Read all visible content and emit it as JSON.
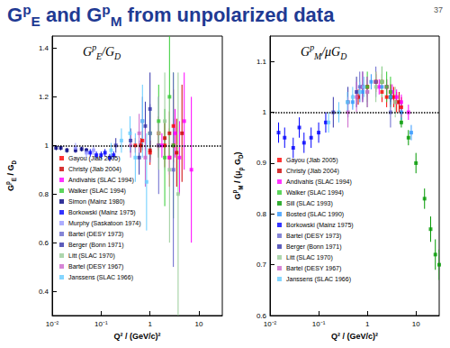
{
  "title": "GpE and GpM from unpolarized data",
  "page": 37,
  "chart_data": [
    {
      "type": "scatter",
      "annotations": [
        "GpE/GD"
      ],
      "x_label": "Q² / (GeV/c)²",
      "y_label": "GpE / GD",
      "log": "x",
      "xlim": [
        0.01,
        30
      ],
      "xticks": [
        {
          "value": 0.01,
          "label": "10⁻²"
        },
        {
          "value": 0.1,
          "label": "10⁻¹"
        },
        1,
        10
      ],
      "ylim": [
        0.3,
        1.45
      ],
      "yticks": [
        0.4,
        0.6,
        0.8,
        1,
        1.2,
        1.4
      ],
      "reference_line": 1,
      "grid": false,
      "legend": "left",
      "marker": "square",
      "series": [
        {
          "name": "Gayou (Jlab 2005)",
          "color": "#ff0000",
          "x": [
            0.5,
            0.7,
            1,
            1.5,
            2,
            2.5,
            3
          ],
          "values": [
            1.0,
            1.02,
            0.97,
            1.05,
            1.0,
            0.95,
            1.08
          ],
          "errors": [
            0.03,
            0.04,
            0.05,
            0.07,
            0.09,
            0.12,
            0.15
          ]
        },
        {
          "name": "Christy (Jlab 2004)",
          "color": "#cc0000",
          "x": [
            0.65,
            1,
            1.5,
            2,
            2.5,
            3,
            3.5,
            4.5
          ],
          "values": [
            1.0,
            0.98,
            1.0,
            1.03,
            1.05,
            1.0,
            0.97,
            1.05
          ],
          "errors": [
            0.03,
            0.04,
            0.05,
            0.07,
            0.09,
            0.11,
            0.14,
            0.2
          ]
        },
        {
          "name": "Andivahis (SLAC 1994)",
          "color": "#ff00ff",
          "x": [
            1.75,
            2.5,
            3.25,
            4,
            5,
            7
          ],
          "values": [
            1.0,
            0.95,
            1.05,
            0.95,
            1.1,
            0.9
          ],
          "errors": [
            0.05,
            0.07,
            0.1,
            0.15,
            0.2,
            0.3
          ]
        },
        {
          "name": "Walker (SLAC 1994)",
          "color": "#33cc33",
          "x": [
            1,
            1.5,
            2,
            2.5,
            3
          ],
          "values": [
            1.05,
            1.1,
            0.95,
            1.2,
            1.0
          ],
          "errors": [
            0.1,
            0.15,
            0.2,
            0.25,
            0.3
          ]
        },
        {
          "name": "Simon (Mainz 1980)",
          "color": "#000080",
          "x": [
            0.012,
            0.015,
            0.02,
            0.03,
            0.04,
            0.05
          ],
          "values": [
            0.99,
            0.99,
            0.98,
            0.98,
            0.985,
            0.98
          ],
          "errors": [
            0.01,
            0.01,
            0.01,
            0.01,
            0.01,
            0.01
          ]
        },
        {
          "name": "Borkowski (Mainz 1975)",
          "color": "#0000ff",
          "x": [
            0.06,
            0.08,
            0.1,
            0.12,
            0.15,
            0.18
          ],
          "values": [
            0.97,
            0.96,
            0.96,
            0.97,
            0.95,
            0.96
          ],
          "errors": [
            0.015,
            0.015,
            0.015,
            0.015,
            0.015,
            0.015
          ]
        },
        {
          "name": "Murphy (Saskatoon 1974)",
          "color": "#9999ff",
          "x": [
            0.03,
            0.05,
            0.07
          ],
          "values": [
            0.99,
            0.97,
            0.98
          ],
          "errors": [
            0.02,
            0.02,
            0.02
          ]
        },
        {
          "name": "Bartel (DESY 1973)",
          "color": "#6666cc",
          "x": [
            0.7,
            1,
            1.5,
            3
          ],
          "values": [
            1.1,
            1.05,
            1.0,
            0.9
          ],
          "errors": [
            0.1,
            0.12,
            0.2,
            0.4
          ]
        },
        {
          "name": "Berger (Bonn 1971)",
          "color": "#3333aa",
          "x": [
            0.2,
            0.4,
            0.6,
            0.8,
            1.0
          ],
          "values": [
            1.0,
            1.02,
            0.95,
            1.08,
            1.15
          ],
          "errors": [
            0.03,
            0.05,
            0.07,
            0.1,
            0.15
          ]
        },
        {
          "name": "Litt (SLAC 1970)",
          "color": "#99cc99",
          "x": [
            1.5,
            2,
            2.5,
            3.75
          ],
          "values": [
            1.05,
            1.1,
            0.9,
            0.8
          ],
          "errors": [
            0.15,
            0.2,
            0.3,
            0.5
          ]
        },
        {
          "name": "Bartel (DESY 1967)",
          "color": "#cc66cc",
          "x": [
            0.4,
            0.6,
            0.8
          ],
          "values": [
            1.0,
            1.05,
            0.95
          ],
          "errors": [
            0.05,
            0.08,
            0.12
          ]
        },
        {
          "name": "Janssens (SLAC 1966)",
          "color": "#66ccff",
          "x": [
            0.16,
            0.26,
            0.39,
            0.5,
            0.7,
            0.85
          ],
          "values": [
            0.98,
            1.02,
            1.05,
            0.95,
            1.1,
            0.85
          ],
          "errors": [
            0.03,
            0.05,
            0.07,
            0.1,
            0.15,
            0.2
          ]
        }
      ]
    },
    {
      "type": "scatter",
      "annotations": [
        "GpM/μGD"
      ],
      "x_label": "Q² / (GeV/c)²",
      "y_label": "GpM / (μp GD)",
      "log": "x",
      "xlim": [
        0.01,
        30
      ],
      "xticks": [
        {
          "value": 0.01,
          "label": "10⁻²"
        },
        {
          "value": 0.1,
          "label": "10⁻¹"
        },
        1,
        10
      ],
      "ylim": [
        0.6,
        1.15
      ],
      "yticks": [
        0.6,
        0.7,
        0.8,
        0.9,
        1,
        1.1
      ],
      "reference_line": 1,
      "grid": false,
      "legend": "left",
      "marker": "square",
      "series": [
        {
          "name": "Gayou (Jlab 2005)",
          "color": "#ff0000",
          "x": [
            1,
            1.5,
            2,
            2.5,
            3.5,
            4,
            5
          ],
          "values": [
            1.05,
            1.06,
            1.04,
            1.03,
            1.03,
            1.02,
            1.01
          ],
          "errors": [
            0.02,
            0.02,
            0.02,
            0.02,
            0.02,
            0.02,
            0.02
          ]
        },
        {
          "name": "Christy (Jlab 2004)",
          "color": "#cc0000",
          "x": [
            0.65,
            1,
            1.5,
            2,
            2.5,
            3,
            4.5
          ],
          "values": [
            1.03,
            1.05,
            1.06,
            1.06,
            1.05,
            1.04,
            1.02
          ],
          "errors": [
            0.015,
            0.015,
            0.015,
            0.015,
            0.015,
            0.015,
            0.02
          ]
        },
        {
          "name": "Andivahis (SLAC 1994)",
          "color": "#ff00ff",
          "x": [
            1.75,
            2.5,
            3.25,
            4,
            5,
            7
          ],
          "values": [
            1.05,
            1.05,
            1.04,
            1.03,
            1.02,
            1.0
          ],
          "errors": [
            0.015,
            0.015,
            0.015,
            0.015,
            0.015,
            0.015
          ]
        },
        {
          "name": "Walker (SLAC 1994)",
          "color": "#33cc33",
          "x": [
            1,
            2,
            2.5,
            3
          ],
          "values": [
            1.05,
            1.06,
            1.05,
            1.04
          ],
          "errors": [
            0.03,
            0.03,
            0.03,
            0.03
          ]
        },
        {
          "name": "Sill (SLAC 1993)",
          "color": "#009900",
          "x": [
            3,
            5,
            7,
            10,
            15,
            20,
            25,
            30
          ],
          "values": [
            1.03,
            0.98,
            0.95,
            0.9,
            0.83,
            0.77,
            0.72,
            0.7
          ],
          "errors": [
            0.01,
            0.01,
            0.015,
            0.02,
            0.02,
            0.025,
            0.03,
            0.03
          ]
        },
        {
          "name": "Bosted (SLAC 1990)",
          "color": "#3399ff",
          "x": [
            0.5,
            0.8,
            1.2,
            2,
            3,
            5,
            8
          ],
          "values": [
            1.02,
            1.04,
            1.06,
            1.05,
            1.03,
            1.0,
            0.96
          ],
          "errors": [
            0.015,
            0.015,
            0.015,
            0.015,
            0.015,
            0.015,
            0.015
          ]
        },
        {
          "name": "Borkowski (Mainz 1975)",
          "color": "#0000ff",
          "x": [
            0.015,
            0.02,
            0.03,
            0.04,
            0.05,
            0.07,
            0.1,
            0.14
          ],
          "values": [
            0.96,
            0.95,
            0.93,
            0.97,
            0.94,
            0.95,
            0.96,
            0.98
          ],
          "errors": [
            0.02,
            0.02,
            0.02,
            0.02,
            0.02,
            0.02,
            0.02,
            0.02
          ]
        },
        {
          "name": "Bartel (DESY 1973)",
          "color": "#6666cc",
          "x": [
            0.7,
            1,
            1.5,
            3
          ],
          "values": [
            1.05,
            1.04,
            1.06,
            1.0
          ],
          "errors": [
            0.03,
            0.03,
            0.03,
            0.03
          ]
        },
        {
          "name": "Berger (Bonn 1971)",
          "color": "#3333aa",
          "x": [
            0.2,
            0.4,
            0.6,
            0.8
          ],
          "values": [
            1.0,
            1.02,
            1.04,
            1.05
          ],
          "errors": [
            0.03,
            0.03,
            0.03,
            0.03
          ]
        },
        {
          "name": "Litt (SLAC 1970)",
          "color": "#99cc99",
          "x": [
            1,
            1.5,
            2,
            3.75
          ],
          "values": [
            1.04,
            1.05,
            1.06,
            1.02
          ],
          "errors": [
            0.03,
            0.03,
            0.03,
            0.03
          ]
        },
        {
          "name": "Bartel (DESY 1967)",
          "color": "#cc66cc",
          "x": [
            0.4,
            0.6,
            0.8,
            1.0
          ],
          "values": [
            1.0,
            1.03,
            1.05,
            1.04
          ],
          "errors": [
            0.03,
            0.03,
            0.03,
            0.03
          ]
        },
        {
          "name": "Janssens (SLAC 1966)",
          "color": "#66ccff",
          "x": [
            0.16,
            0.26,
            0.39,
            0.5,
            0.7,
            0.85
          ],
          "values": [
            0.98,
            1.0,
            1.02,
            1.03,
            1.04,
            1.05
          ],
          "errors": [
            0.02,
            0.02,
            0.02,
            0.02,
            0.02,
            0.02
          ]
        }
      ]
    }
  ]
}
